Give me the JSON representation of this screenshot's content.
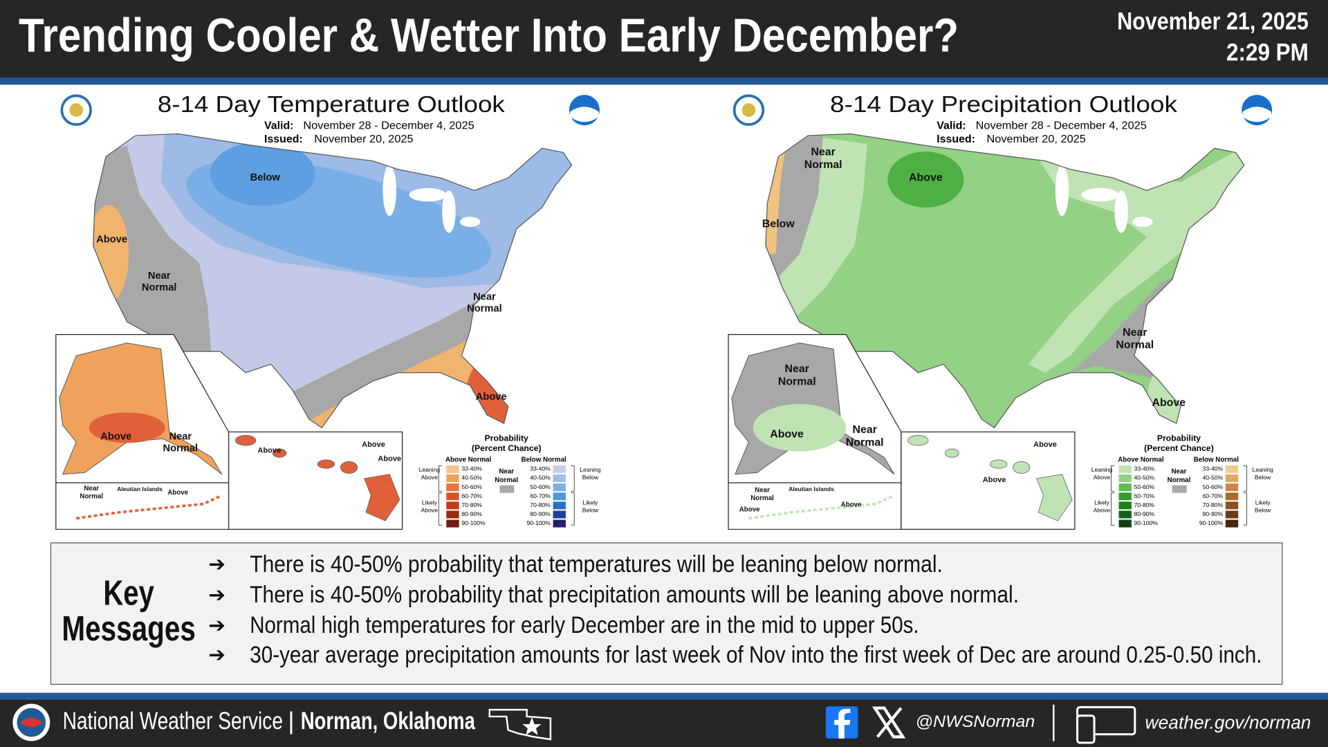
{
  "header": {
    "title": "Trending Cooler & Wetter Into Early December?",
    "date": "November 21, 2025",
    "time": "2:29 PM"
  },
  "maps": [
    {
      "title": "8-14 Day Temperature Outlook",
      "valid_label": "Valid:",
      "valid": "November 28 - December 4, 2025",
      "issued_label": "Issued:",
      "issued": "November 20, 2025",
      "labels": [
        {
          "lines": [
            "Below"
          ]
        },
        {
          "lines": [
            "Above"
          ]
        },
        {
          "lines": [
            "Near",
            "Normal"
          ]
        },
        {
          "lines": [
            "Near",
            "Normal"
          ]
        },
        {
          "lines": [
            "Above"
          ]
        },
        {
          "lines": [
            "Above"
          ]
        },
        {
          "lines": [
            "Near",
            "Normal"
          ]
        },
        {
          "lines": [
            "Above"
          ]
        },
        {
          "lines": [
            "Above"
          ]
        },
        {
          "lines": [
            "Above"
          ]
        },
        {
          "lines": [
            "Near",
            "Normal"
          ]
        },
        {
          "lines": [
            "Aleutian Islands"
          ]
        },
        {
          "lines": [
            "Above"
          ]
        }
      ]
    },
    {
      "title": "8-14 Day Precipitation Outlook",
      "valid_label": "Valid:",
      "valid": "November 28 - December 4, 2025",
      "issued_label": "Issued:",
      "issued": "November 20, 2025",
      "labels": [
        {
          "lines": [
            "Near",
            "Normal"
          ]
        },
        {
          "lines": [
            "Above"
          ]
        },
        {
          "lines": [
            "Below"
          ]
        },
        {
          "lines": [
            "Near",
            "Normal"
          ]
        },
        {
          "lines": [
            "Above"
          ]
        },
        {
          "lines": [
            "Near",
            "Normal"
          ]
        },
        {
          "lines": [
            "Above"
          ]
        },
        {
          "lines": [
            "Near",
            "Normal"
          ]
        },
        {
          "lines": [
            "Above"
          ]
        },
        {
          "lines": [
            "Above"
          ]
        },
        {
          "lines": [
            "Near",
            "Normal"
          ]
        },
        {
          "lines": [
            "Aleutian Islands"
          ]
        },
        {
          "lines": [
            "Above"
          ]
        },
        {
          "lines": [
            "Above"
          ]
        }
      ]
    }
  ],
  "legend": {
    "title": [
      "Probability",
      "(Percent Chance)"
    ],
    "above": "Above Normal",
    "below": "Below Normal",
    "near": [
      "Near",
      "Normal"
    ],
    "bins": [
      "33-40%",
      "40-50%",
      "50-60%",
      "60-70%",
      "70-80%",
      "80-90%",
      "90-100%"
    ],
    "leaning_above": [
      "Leaning",
      "Above"
    ],
    "likely_above": [
      "Likely",
      "Above"
    ],
    "leaning_below": [
      "Leaning",
      "Below"
    ],
    "likely_below": [
      "Likely",
      "Below"
    ]
  },
  "key_messages": {
    "title": [
      "Key",
      "Messages"
    ],
    "bullet": "➔",
    "items": [
      "There is 40-50% probability that temperatures will be leaning below normal.",
      "There is 40-50% probability that precipitation amounts will be leaning above normal.",
      "Normal high temperatures for early December are in the mid to upper 50s.",
      "30-year average precipitation amounts for last week of Nov into the first week of Dec are around 0.25-0.50 inch."
    ]
  },
  "footer": {
    "org": "National Weather Service",
    "separator": "|",
    "office": "Norman, Oklahoma",
    "handle": "@NWSNorman",
    "website": "weather.gov/norman"
  }
}
